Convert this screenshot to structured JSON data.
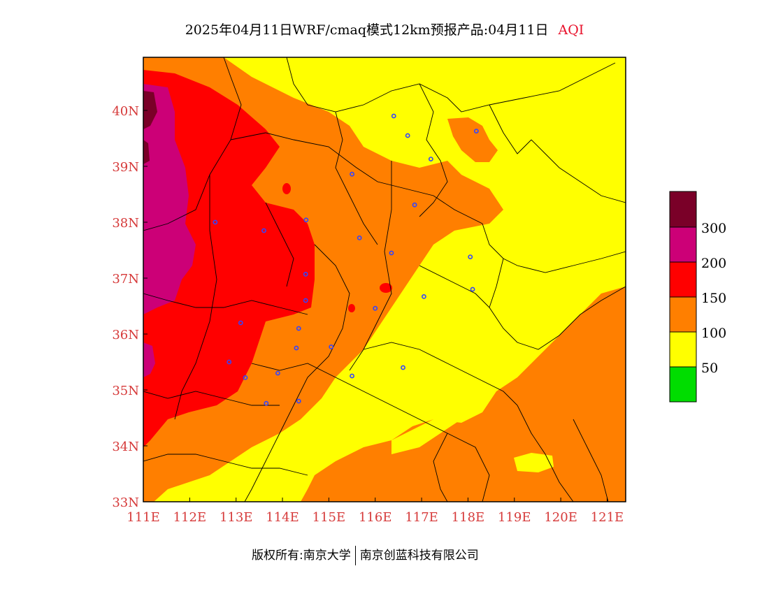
{
  "title": {
    "main": "2025年04月11日WRF/cmaq模式12km预报产品:04月11日",
    "tag": "AQI"
  },
  "colors": {
    "aqi_0_50": "#00dd00",
    "aqi_50_100": "#ffff00",
    "aqi_100_150": "#ff7f00",
    "aqi_150_200": "#ff0000",
    "aqi_200_300": "#cc0077",
    "aqi_300_plus": "#7a0028",
    "tick_color": "#d63a3a",
    "city_marker": "#3344ff"
  },
  "axes": {
    "lon_ticks": [
      "111E",
      "112E",
      "113E",
      "114E",
      "115E",
      "116E",
      "117E",
      "118E",
      "119E",
      "120E",
      "121E"
    ],
    "lat_ticks": [
      "33N",
      "34N",
      "35N",
      "36N",
      "37N",
      "38N",
      "39N",
      "40N"
    ],
    "lon_range": [
      111,
      121.4
    ],
    "lat_range": [
      33,
      40.95
    ]
  },
  "legend": {
    "labels": [
      "50",
      "100",
      "150",
      "200",
      "300"
    ]
  },
  "footer": {
    "left": "版权所有:南京大学",
    "right": "南京创蓝科技有限公司"
  },
  "cities": [
    [
      116.4,
      39.9
    ],
    [
      116.7,
      39.55
    ],
    [
      117.2,
      39.13
    ],
    [
      118.18,
      39.63
    ],
    [
      115.5,
      38.86
    ],
    [
      116.85,
      38.31
    ],
    [
      114.51,
      38.04
    ],
    [
      112.55,
      38.0
    ],
    [
      113.6,
      37.85
    ],
    [
      115.66,
      37.72
    ],
    [
      116.35,
      37.45
    ],
    [
      114.5,
      37.07
    ],
    [
      118.05,
      37.38
    ],
    [
      118.1,
      36.8
    ],
    [
      117.05,
      36.67
    ],
    [
      114.5,
      36.6
    ],
    [
      116.0,
      36.46
    ],
    [
      113.1,
      36.2
    ],
    [
      114.35,
      36.1
    ],
    [
      114.3,
      35.75
    ],
    [
      115.05,
      35.77
    ],
    [
      112.85,
      35.5
    ],
    [
      113.2,
      35.22
    ],
    [
      113.9,
      35.3
    ],
    [
      115.5,
      35.25
    ],
    [
      116.6,
      35.4
    ],
    [
      114.35,
      34.8
    ],
    [
      113.65,
      34.76
    ]
  ]
}
